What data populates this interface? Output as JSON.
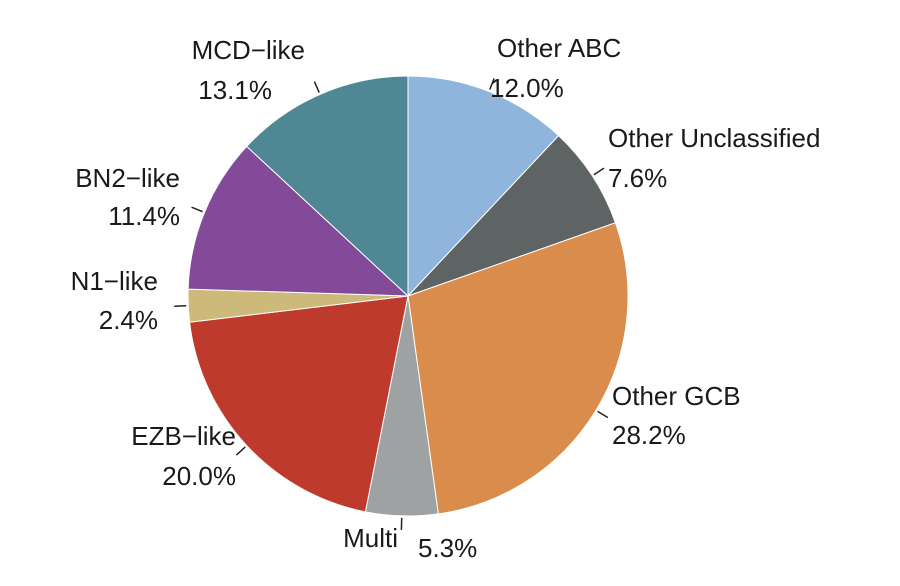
{
  "chart_data": {
    "type": "pie",
    "categories": [
      "Other ABC",
      "Other Unclassified",
      "Other GCB",
      "Multi",
      "EZB−like",
      "N1−like",
      "BN2−like",
      "MCD−like"
    ],
    "values": [
      12.0,
      7.6,
      28.2,
      5.3,
      20.0,
      2.4,
      11.4,
      13.1
    ],
    "value_labels": [
      "12.0%",
      "7.6%",
      "28.2%",
      "5.3%",
      "20.0%",
      "2.4%",
      "11.4%",
      "13.1%"
    ],
    "colors": [
      "#8fb5dc",
      "#5e6363",
      "#d98c4b",
      "#9ea2a2",
      "#be3a2c",
      "#cdba7b",
      "#844a9a",
      "#4f8894"
    ]
  }
}
